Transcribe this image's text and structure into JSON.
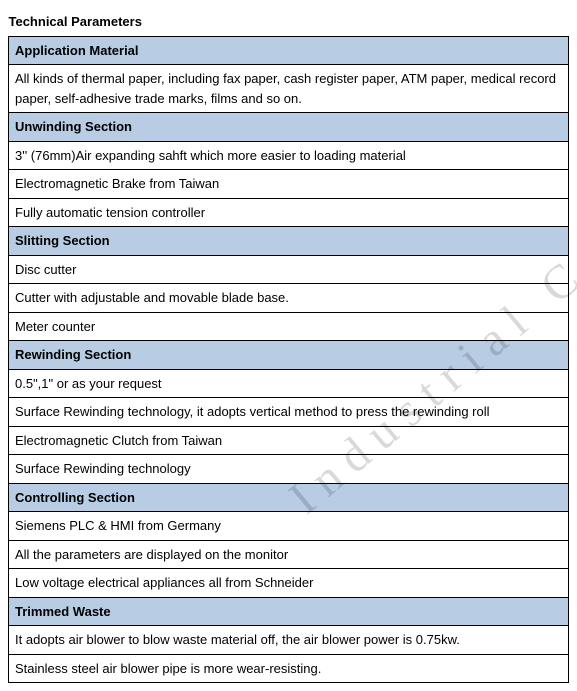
{
  "title": "Technical Parameters",
  "watermark_text": "Industrial Co.",
  "colors": {
    "header_bg": "#b8cce4",
    "border": "#000000",
    "text": "#000000",
    "watermark": "rgba(0,0,0,0.15)"
  },
  "sections": [
    {
      "header": "Application Material",
      "rows": [
        "All kinds of thermal paper, including fax paper, cash register paper, ATM paper, medical record paper, self-adhesive trade marks, films and so on."
      ]
    },
    {
      "header": "Unwinding Section",
      "rows": [
        "3'' (76mm)Air expanding sahft which more easier to loading material",
        "Electromagnetic Brake from Taiwan",
        "Fully automatic tension controller"
      ]
    },
    {
      "header": "Slitting Section",
      "rows": [
        "Disc cutter",
        "Cutter with adjustable and movable blade base.",
        "Meter counter"
      ]
    },
    {
      "header": "Rewinding Section",
      "rows": [
        "0.5\",1\" or as your request",
        "Surface Rewinding technology, it adopts vertical method to press the rewinding roll",
        "Electromagnetic Clutch from Taiwan",
        "Surface Rewinding technology"
      ]
    },
    {
      "header": "Controlling Section",
      "rows": [
        "Siemens PLC & HMI from Germany",
        "All the parameters are displayed on the monitor",
        "Low voltage electrical appliances all from Schneider"
      ]
    },
    {
      "header": "Trimmed Waste",
      "rows": [
        "It adopts air blower to blow waste material off, the air blower power is 0.75kw.",
        "Stainless steel air blower pipe is more wear-resisting."
      ]
    }
  ]
}
